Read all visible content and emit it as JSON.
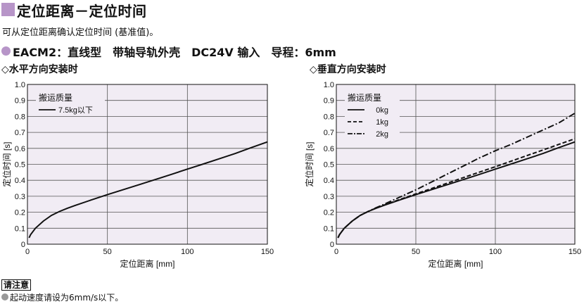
{
  "header": {
    "title": "定位距离－定位时间",
    "subtitle": "可从定位距离确认定位时间 (基准值)。",
    "spec_line": "EACM2：直线型　带轴导轨外壳　DC24V 输入　导程：6mm"
  },
  "notes": {
    "label": "请注意",
    "items": [
      "起动速度请设为6mm/s以下。"
    ]
  },
  "colors": {
    "accent": "#b795c8",
    "plot_bg": "#f1ecf4",
    "line": "#111111"
  },
  "chart_data": [
    {
      "type": "line",
      "panel_title": "◇水平方向安装时",
      "xlabel": "定位距离 [mm]",
      "ylabel": "定位时间 [s]",
      "xlim": [
        0,
        150
      ],
      "ylim": [
        0,
        1.0
      ],
      "xticks": [
        "0",
        "50",
        "100",
        "150"
      ],
      "yticks": [
        "0",
        "0.1",
        "0.2",
        "0.3",
        "0.4",
        "0.5",
        "0.6",
        "0.7",
        "0.8",
        "0.9",
        "1.0"
      ],
      "grid": true,
      "legend_title": "搬运质量",
      "legend_position": "top-left",
      "series": [
        {
          "name": "7.5kg以下",
          "style": "solid",
          "x": [
            1,
            2,
            5,
            10,
            15,
            20,
            25,
            30,
            40,
            50,
            60,
            70,
            80,
            90,
            100,
            110,
            120,
            130,
            140,
            150
          ],
          "y": [
            0.04,
            0.06,
            0.1,
            0.145,
            0.18,
            0.205,
            0.225,
            0.243,
            0.277,
            0.31,
            0.342,
            0.373,
            0.405,
            0.437,
            0.47,
            0.502,
            0.535,
            0.568,
            0.605,
            0.64
          ]
        }
      ]
    },
    {
      "type": "line",
      "panel_title": "◇垂直方向安装时",
      "xlabel": "定位距离 [mm]",
      "ylabel": "定位时间 [s]",
      "xlim": [
        0,
        150
      ],
      "ylim": [
        0,
        1.0
      ],
      "xticks": [
        "0",
        "50",
        "100",
        "150"
      ],
      "yticks": [
        "0",
        "0.1",
        "0.2",
        "0.3",
        "0.4",
        "0.5",
        "0.6",
        "0.7",
        "0.8",
        "0.9",
        "1.0"
      ],
      "grid": true,
      "legend_title": "搬运质量",
      "legend_position": "top-left",
      "series": [
        {
          "name": "0kg",
          "style": "solid",
          "x": [
            1,
            2,
            5,
            10,
            15,
            20,
            25,
            30,
            40,
            50,
            60,
            70,
            80,
            90,
            100,
            110,
            120,
            130,
            140,
            150
          ],
          "y": [
            0.04,
            0.06,
            0.1,
            0.145,
            0.18,
            0.205,
            0.225,
            0.243,
            0.277,
            0.31,
            0.342,
            0.373,
            0.405,
            0.437,
            0.47,
            0.502,
            0.535,
            0.568,
            0.605,
            0.64
          ]
        },
        {
          "name": "1kg",
          "style": "dashed",
          "x": [
            1,
            2,
            5,
            10,
            15,
            20,
            25,
            30,
            40,
            50,
            60,
            70,
            80,
            90,
            100,
            110,
            120,
            130,
            140,
            150
          ],
          "y": [
            0.04,
            0.06,
            0.1,
            0.145,
            0.18,
            0.205,
            0.226,
            0.245,
            0.28,
            0.315,
            0.349,
            0.383,
            0.417,
            0.451,
            0.485,
            0.52,
            0.555,
            0.59,
            0.625,
            0.66
          ]
        },
        {
          "name": "2kg",
          "style": "dashdot",
          "x": [
            1,
            2,
            5,
            10,
            15,
            20,
            25,
            30,
            40,
            50,
            60,
            70,
            80,
            90,
            100,
            110,
            120,
            130,
            140,
            150
          ],
          "y": [
            0.04,
            0.06,
            0.1,
            0.145,
            0.18,
            0.205,
            0.228,
            0.25,
            0.295,
            0.34,
            0.39,
            0.44,
            0.49,
            0.54,
            0.585,
            0.625,
            0.67,
            0.715,
            0.76,
            0.82
          ]
        }
      ]
    }
  ]
}
